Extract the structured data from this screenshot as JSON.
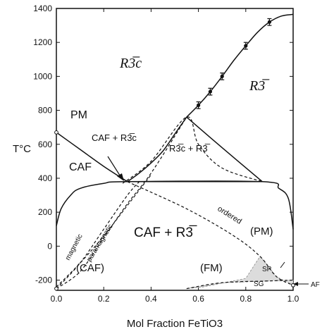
{
  "chart_data": {
    "type": "phase-diagram",
    "title": "",
    "xlabel": "Mol Fraction FeTiO3",
    "ylabel": "T°C",
    "xlim": [
      0.0,
      1.0
    ],
    "ylim": [
      -260,
      1400
    ],
    "xticks": [
      "0.0",
      "0.2",
      "0.4",
      "0.6",
      "0.8",
      "1.0"
    ],
    "yticks": [
      "-200",
      "0",
      "200",
      "400",
      "600",
      "800",
      "1000",
      "1200",
      "1400"
    ],
    "grid": false,
    "region_labels": {
      "r3c_upper": "R3̅c",
      "r3_upper": "R3̅",
      "pm": "PM",
      "caf_r3c": "CAF + R3̅c",
      "r3c_r3": "R3̅c  +  R3̅",
      "caf": "CAF",
      "caf_r3": "CAF + R3̅",
      "caf_lower": "(CAF)",
      "fm": "(FM)",
      "pm_lower": "(PM)",
      "sp": "SP",
      "sg": "SG",
      "af": "AF"
    },
    "curve_labels": {
      "magnetic": "magnetic",
      "paramagnetic": "paramagnetic",
      "ordered": "ordered"
    },
    "data_points": [
      {
        "x": 0.6,
        "y": 830,
        "err": 20
      },
      {
        "x": 0.65,
        "y": 910,
        "err": 20
      },
      {
        "x": 0.7,
        "y": 1000,
        "err": 20
      },
      {
        "x": 0.8,
        "y": 1180,
        "err": 20
      },
      {
        "x": 0.9,
        "y": 1320,
        "err": 20
      }
    ],
    "curves": {
      "order_disorder": [
        [
          0.55,
          760
        ],
        [
          0.6,
          830
        ],
        [
          0.65,
          910
        ],
        [
          0.7,
          1000
        ],
        [
          0.75,
          1095
        ],
        [
          0.8,
          1180
        ],
        [
          0.85,
          1260
        ],
        [
          0.9,
          1320
        ],
        [
          0.95,
          1355
        ],
        [
          1.0,
          1365
        ]
      ],
      "miscibility_left": [
        [
          0.3,
          380
        ],
        [
          0.35,
          430
        ],
        [
          0.4,
          490
        ],
        [
          0.45,
          560
        ],
        [
          0.5,
          660
        ],
        [
          0.55,
          760
        ]
      ],
      "miscibility_right": [
        [
          0.55,
          760
        ],
        [
          0.7,
          580
        ],
        [
          0.87,
          380
        ]
      ],
      "eutectoid": [
        [
          0.3,
          380
        ],
        [
          0.87,
          380
        ]
      ],
      "caf_dome": [
        [
          0.0,
          120
        ],
        [
          0.02,
          220
        ],
        [
          0.06,
          300
        ],
        [
          0.1,
          340
        ],
        [
          0.2,
          370
        ],
        [
          0.3,
          380
        ],
        [
          0.87,
          380
        ],
        [
          0.94,
          340
        ],
        [
          0.98,
          280
        ],
        [
          1.0,
          100
        ]
      ],
      "caf_r3c_boundary": [
        [
          0.0,
          670
        ],
        [
          0.1,
          570
        ],
        [
          0.2,
          470
        ],
        [
          0.3,
          380
        ]
      ],
      "dashed_r3c": [
        [
          0.28,
          370
        ],
        [
          0.4,
          500
        ],
        [
          0.55,
          760
        ],
        [
          0.6,
          600
        ],
        [
          0.7,
          460
        ],
        [
          0.87,
          380
        ]
      ],
      "magnetic": [
        [
          0.0,
          -250
        ],
        [
          0.1,
          -100
        ],
        [
          0.2,
          100
        ],
        [
          0.3,
          300
        ],
        [
          0.35,
          380
        ]
      ],
      "paramagnetic": [
        [
          0.0,
          -250
        ],
        [
          0.1,
          -150
        ],
        [
          0.2,
          50
        ],
        [
          0.3,
          250
        ],
        [
          0.4,
          430
        ],
        [
          0.55,
          760
        ]
      ],
      "ordered": [
        [
          0.3,
          380
        ],
        [
          0.55,
          220
        ],
        [
          0.75,
          60
        ],
        [
          0.86,
          -60
        ],
        [
          0.93,
          -180
        ],
        [
          1.0,
          -230
        ]
      ],
      "dashed_diag": [
        [
          0.0,
          -240
        ],
        [
          0.1,
          -100
        ],
        [
          0.2,
          60
        ],
        [
          0.3,
          240
        ],
        [
          0.4,
          420
        ]
      ],
      "dashed_sg": [
        [
          0.55,
          -250
        ],
        [
          0.7,
          -215
        ],
        [
          0.9,
          -205
        ],
        [
          1.0,
          -200
        ]
      ]
    }
  }
}
